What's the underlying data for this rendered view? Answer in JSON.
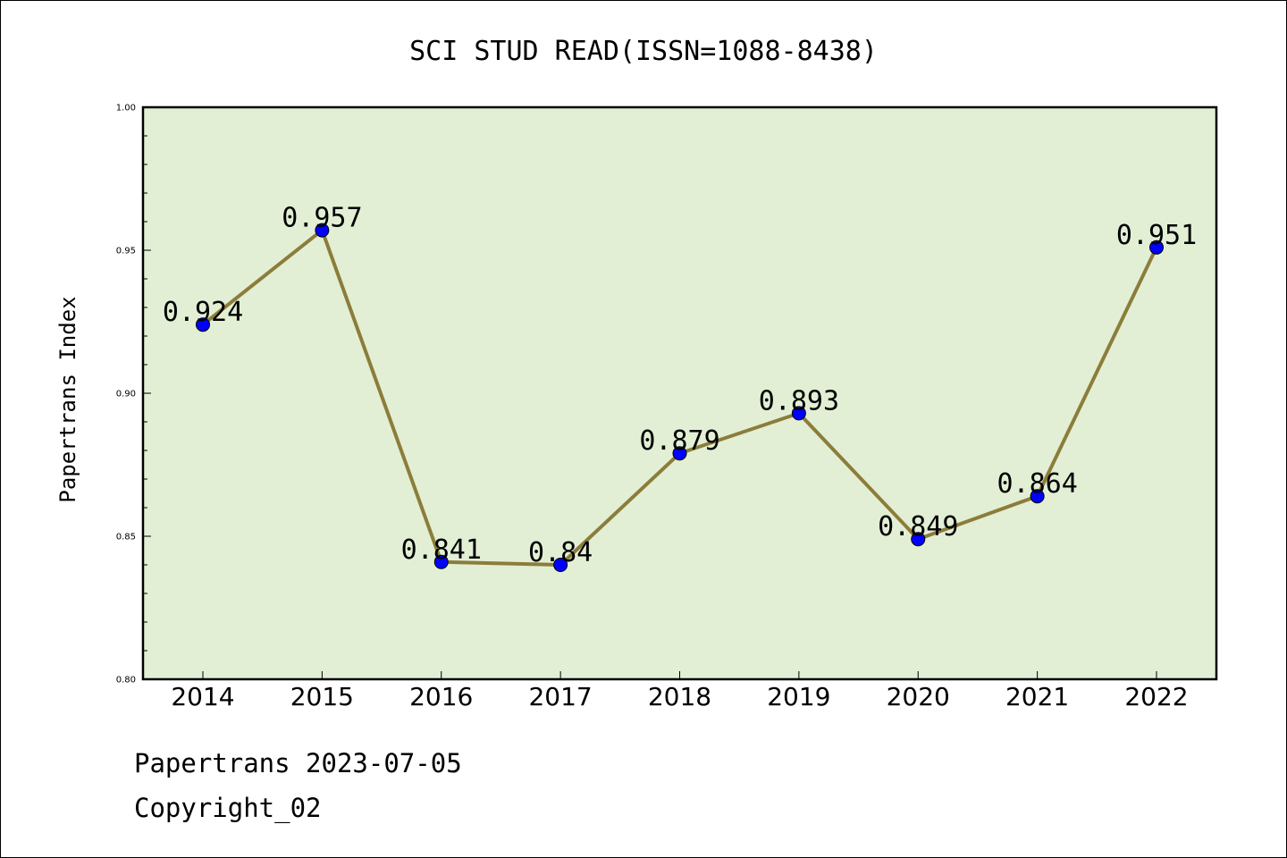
{
  "chart_data": {
    "type": "line",
    "title": "SCI STUD READ(ISSN=1088-8438)",
    "ylabel": "Papertrans Index",
    "xlabel": "",
    "categories": [
      "2014",
      "2015",
      "2016",
      "2017",
      "2018",
      "2019",
      "2020",
      "2021",
      "2022"
    ],
    "values": [
      0.924,
      0.957,
      0.841,
      0.84,
      0.879,
      0.893,
      0.849,
      0.864,
      0.951
    ],
    "data_labels": [
      "0.924",
      "0.957",
      "0.841",
      "0.84",
      "0.879",
      "0.893",
      "0.849",
      "0.864",
      "0.951"
    ],
    "ylim": [
      0.8,
      1.0
    ],
    "yticks": [
      "0.80",
      "0.85",
      "0.90",
      "0.95",
      "1.00"
    ],
    "grid": false,
    "line_color": "#8b7d3a",
    "marker_color": "#0000ff",
    "plot_background": "#e2efd5"
  },
  "footer": {
    "line1": "Papertrans 2023-07-05",
    "line2": "Copyright_02"
  }
}
